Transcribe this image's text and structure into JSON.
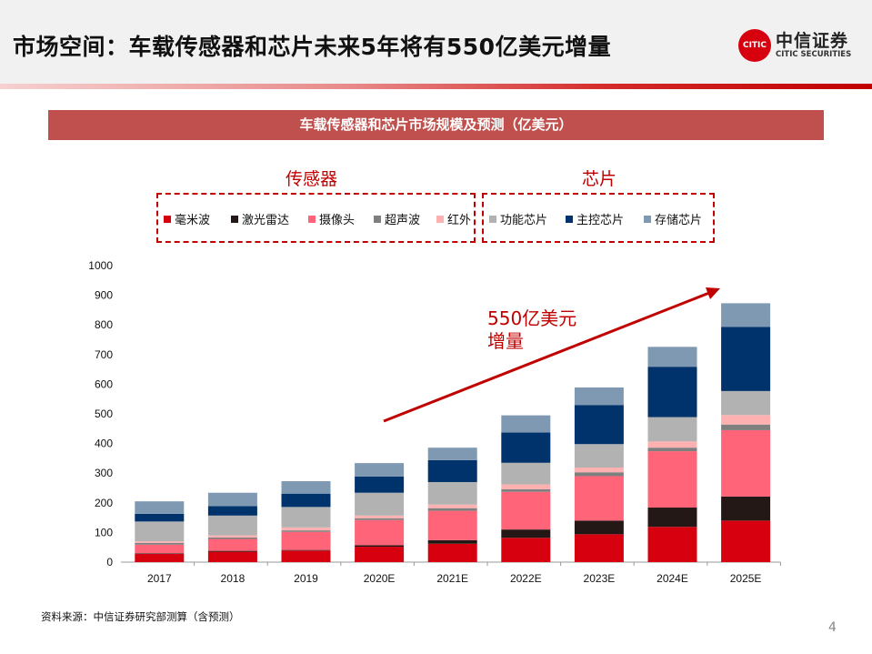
{
  "header": {
    "title": "市场空间：车载传感器和芯片未来5年将有550亿美元增量",
    "logo_cn": "中信证券",
    "logo_en": "CITIC SECURITIES",
    "logo_mark": "CITIC"
  },
  "banner": "车载传感器和芯片市场规模及预测（亿美元）",
  "legend_groups": [
    "传感器",
    "芯片"
  ],
  "annotation": {
    "line1": "550亿美元",
    "line2": "增量"
  },
  "source": "资料来源：中信证券研究部测算（含预测）",
  "page_number": "4",
  "chart_data": {
    "type": "bar",
    "stacked": true,
    "categories": [
      "2017",
      "2018",
      "2019",
      "2020E",
      "2021E",
      "2022E",
      "2023E",
      "2024E",
      "2025E"
    ],
    "ylim": [
      0,
      1000
    ],
    "yticks": [
      "0",
      "100",
      "200",
      "300",
      "400",
      "500",
      "600",
      "700",
      "800",
      "900",
      "1000"
    ],
    "grid": false,
    "legend_placement": "top",
    "series": [
      {
        "name": "毫米波",
        "color": "#d7000f",
        "values": [
          28,
          35,
          39,
          52,
          62,
          82,
          94,
          119,
          140
        ]
      },
      {
        "name": "激光雷达",
        "color": "#231815",
        "values": [
          2,
          3,
          2,
          5,
          12,
          28,
          46,
          65,
          81
        ]
      },
      {
        "name": "摄像头",
        "color": "#ff6479",
        "values": [
          29,
          40,
          61,
          85,
          99,
          127,
          150,
          190,
          224
        ]
      },
      {
        "name": "超声波",
        "color": "#7f7f7f",
        "values": [
          6,
          5,
          5,
          6,
          9,
          9,
          13,
          12,
          19
        ]
      },
      {
        "name": "红外",
        "color": "#ffb0b0",
        "values": [
          5,
          7,
          10,
          9,
          12,
          16,
          16,
          21,
          32
        ]
      },
      {
        "name": "功能芯片",
        "color": "#b2b2b2",
        "values": [
          67,
          67,
          69,
          77,
          76,
          73,
          79,
          82,
          81
        ]
      },
      {
        "name": "主控芯片",
        "color": "#00336b",
        "values": [
          26,
          32,
          45,
          55,
          74,
          102,
          132,
          170,
          216
        ]
      },
      {
        "name": "存储芯片",
        "color": "#7f99b2",
        "values": [
          42,
          45,
          42,
          45,
          42,
          58,
          59,
          67,
          80
        ]
      }
    ]
  }
}
